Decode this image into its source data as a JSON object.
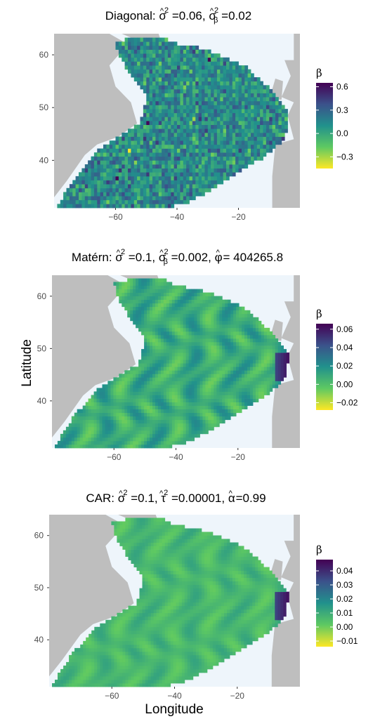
{
  "figure": {
    "ylabel": "Latitude",
    "xlabel": "Longitude"
  },
  "chart_data": [
    {
      "type": "heatmap",
      "title_parts": {
        "label": "Diagonal: ",
        "s1": "σ",
        "s1_hat": "^",
        "s1_sup": "2",
        "s1_val": " =0.06, ",
        "s2": "σ",
        "s2_hat": "^",
        "s2_sup": "2",
        "s2_sub": "β",
        "s2_val": " =0.02"
      },
      "x_ticks": [
        -60,
        -40,
        -20
      ],
      "y_ticks": [
        40,
        50,
        60
      ],
      "xlim": [
        -80,
        0
      ],
      "ylim": [
        31,
        64
      ],
      "legend_title": "β",
      "legend_ticks": [
        "0.6",
        "0.3",
        "0.0",
        "−0.3"
      ],
      "value_range": [
        -0.45,
        0.65
      ],
      "land_color": "#bebebe",
      "sea_color": "#eef5fb",
      "pattern": "noise"
    },
    {
      "type": "heatmap",
      "title_parts": {
        "label": "Matérn: ",
        "s1": "σ",
        "s1_hat": "^",
        "s1_sup": "2",
        "s1_val": " =0.1, ",
        "s2": "σ",
        "s2_hat": "^",
        "s2_sup": "2",
        "s2_sub": "β",
        "s2_val": " =0.002, ",
        "s3": "φ",
        "s3_hat": "^",
        "s3_val": " = 404265.8"
      },
      "x_ticks": [
        -60,
        -40,
        -20
      ],
      "y_ticks": [
        40,
        50,
        60
      ],
      "xlim": [
        -80,
        0
      ],
      "ylim": [
        31,
        64
      ],
      "legend_title": "β",
      "legend_ticks": [
        "0.06",
        "0.04",
        "0.02",
        "0.00",
        "−0.02"
      ],
      "value_range": [
        -0.028,
        0.066
      ],
      "land_color": "#bebebe",
      "sea_color": "#eef5fb",
      "pattern": "smooth"
    },
    {
      "type": "heatmap",
      "title_parts": {
        "label": "CAR: ",
        "s1": "σ",
        "s1_hat": "^",
        "s1_sup": "2",
        "s1_val": " =0.1, ",
        "s2": "τ",
        "s2_hat": "^",
        "s2_sup": "2",
        "s2_val": " =0.00001, ",
        "s3": "α",
        "s3_hat": "^",
        "s3_val": " =0.99"
      },
      "x_ticks": [
        -60,
        -40,
        -20
      ],
      "y_ticks": [
        40,
        50,
        60
      ],
      "xlim": [
        -80,
        0
      ],
      "ylim": [
        31,
        64
      ],
      "legend_title": "β",
      "legend_ticks": [
        "0.04",
        "0.03",
        "0.02",
        "0.01",
        "0.00",
        "−0.01"
      ],
      "value_range": [
        -0.014,
        0.048
      ],
      "land_color": "#bebebe",
      "sea_color": "#eef5fb",
      "pattern": "smooth-weak"
    }
  ]
}
